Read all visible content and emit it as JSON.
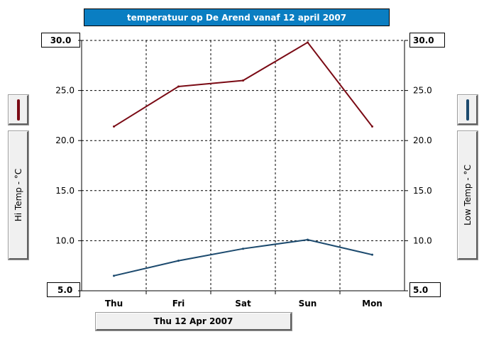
{
  "title": "temperatuur op De Arend vanaf 12 april 2007",
  "date_label": "Thu 12 Apr 2007",
  "left_axis": {
    "label": "Hi Temp - °C",
    "top_value": "30.0",
    "bottom_value": "5.0",
    "color": "#7a0a14"
  },
  "right_axis": {
    "label": "Low Temp - °C",
    "top_value": "30.0",
    "bottom_value": "5.0",
    "color": "#1c4a6e"
  },
  "chart_data": {
    "type": "line",
    "categories": [
      "Thu",
      "Fri",
      "Sat",
      "Sun",
      "Mon"
    ],
    "ylim": [
      5,
      30
    ],
    "yticks": [
      "25.0",
      "20.0",
      "15.0",
      "10.0"
    ],
    "grid": true,
    "series": [
      {
        "name": "Hi Temp - °C",
        "values": [
          21.4,
          25.4,
          26.0,
          29.8,
          21.4
        ],
        "color": "#7a0a14"
      },
      {
        "name": "Low Temp - °C",
        "values": [
          6.5,
          8.0,
          9.2,
          10.1,
          8.6
        ],
        "color": "#1c4a6e"
      }
    ]
  }
}
